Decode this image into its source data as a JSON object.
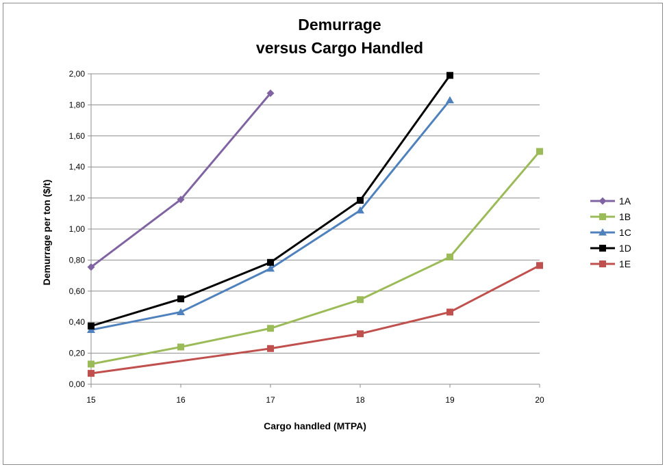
{
  "chart_data": {
    "type": "line",
    "title_line1": "Demurrage",
    "title_line2": "versus Cargo Handled",
    "xlabel": "Cargo handled (MTPA)",
    "ylabel": "Demurrage per ton   ($/t)",
    "xlim": [
      15,
      20
    ],
    "ylim": [
      0,
      2.0
    ],
    "x_ticks": [
      "15",
      "16",
      "17",
      "18",
      "19",
      "20"
    ],
    "y_ticks": [
      "0,00",
      "0,20",
      "0,40",
      "0,60",
      "0,80",
      "1,00",
      "1,20",
      "1,40",
      "1,60",
      "1,80",
      "2,00"
    ],
    "grid": "horizontal",
    "legend_position": "right",
    "series": [
      {
        "name": "1A",
        "color": "#8064A2",
        "marker": "diamond",
        "x": [
          15,
          16,
          17
        ],
        "y": [
          0.755,
          1.19,
          1.875
        ]
      },
      {
        "name": "1B",
        "color": "#9BBB59",
        "marker": "square",
        "x": [
          15,
          16,
          17,
          18,
          19,
          20
        ],
        "y": [
          0.13,
          0.24,
          0.36,
          0.545,
          0.82,
          1.5
        ]
      },
      {
        "name": "1C",
        "color": "#4F81BD",
        "marker": "triangle",
        "x": [
          15,
          16,
          17,
          18,
          19
        ],
        "y": [
          0.35,
          0.465,
          0.745,
          1.12,
          1.83
        ]
      },
      {
        "name": "1D",
        "color": "#000000",
        "marker": "square",
        "x": [
          15,
          16,
          17,
          18,
          19
        ],
        "y": [
          0.375,
          0.55,
          0.785,
          1.185,
          1.99
        ]
      },
      {
        "name": "1E",
        "color": "#C0504D",
        "marker": "square",
        "x": [
          15,
          17,
          18,
          19,
          20
        ],
        "y": [
          0.07,
          0.23,
          0.325,
          0.465,
          0.765
        ]
      }
    ]
  }
}
